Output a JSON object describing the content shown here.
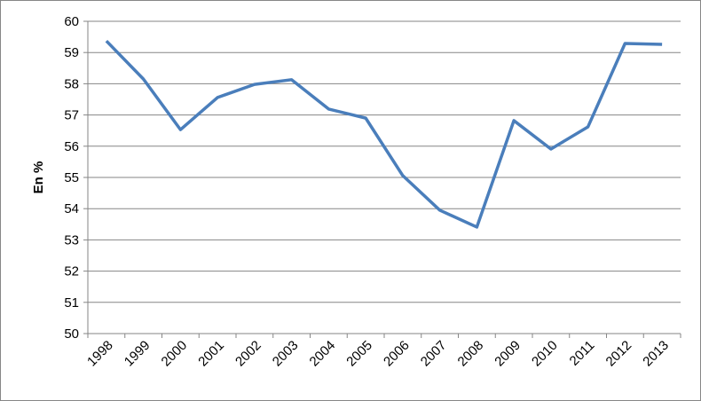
{
  "chart_data": {
    "type": "line",
    "y_label": "En %",
    "categories": [
      "1998",
      "1999",
      "2000",
      "2001",
      "2002",
      "2003",
      "2004",
      "2005",
      "2006",
      "2007",
      "2008",
      "2009",
      "2010",
      "2011",
      "2012",
      "2013"
    ],
    "series": [
      {
        "name": "En %",
        "color": "#4a7ebb",
        "values": [
          59.37,
          58.15,
          56.53,
          57.56,
          57.98,
          58.13,
          57.19,
          56.9,
          55.06,
          53.95,
          53.41,
          56.82,
          55.91,
          56.62,
          59.29,
          59.26
        ]
      }
    ],
    "ylim": [
      50,
      60
    ],
    "yticks": [
      50,
      51,
      52,
      53,
      54,
      55,
      56,
      57,
      58,
      59,
      60
    ],
    "grid": true
  }
}
